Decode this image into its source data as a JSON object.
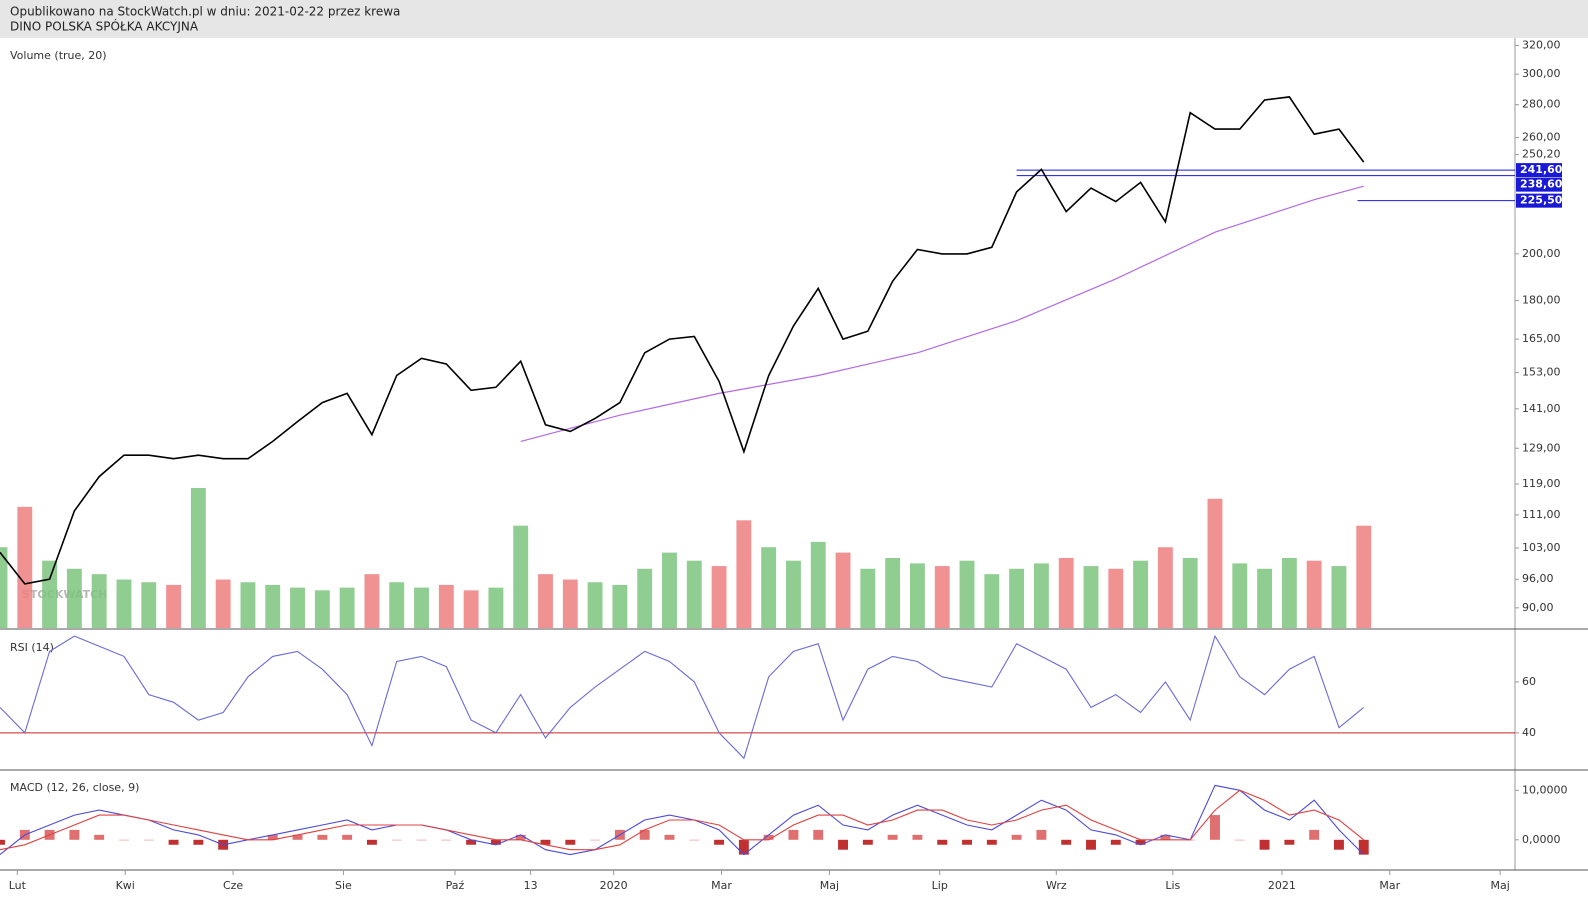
{
  "header": {
    "line1": "Opublikowano na StockWatch.pl w dniu: 2021-02-22 przez krewa",
    "line2": "DINO POLSKA SPÓŁKA AKCYJNA"
  },
  "chart_data": [
    {
      "type": "line",
      "title": "Volume (true, 20)",
      "log_scale": true,
      "xlim": [
        0,
        122.2
      ],
      "ylim": [
        86,
        324
      ],
      "yticks": [
        {
          "value": 90,
          "label": "90,00"
        },
        {
          "value": 96,
          "label": "96,00"
        },
        {
          "value": 103,
          "label": "103,00"
        },
        {
          "value": 111,
          "label": "111,00"
        },
        {
          "value": 119,
          "label": "119,00"
        },
        {
          "value": 129,
          "label": "129,00"
        },
        {
          "value": 141,
          "label": "141,00"
        },
        {
          "value": 153,
          "label": "153,00"
        },
        {
          "value": 165,
          "label": "165,00"
        },
        {
          "value": 180,
          "label": "180,00"
        },
        {
          "value": 200,
          "label": "200,00"
        },
        {
          "value": 250.2,
          "label": "250,20"
        },
        {
          "value": 260,
          "label": "260,00"
        },
        {
          "value": 280,
          "label": "280,00"
        },
        {
          "value": 300,
          "label": "300,00"
        },
        {
          "value": 320,
          "label": "320,00"
        }
      ],
      "x": [
        0,
        2,
        4,
        6,
        8,
        10,
        12,
        14,
        16,
        18,
        20,
        22,
        24,
        26,
        28,
        30,
        32,
        34,
        36,
        38,
        40,
        42,
        44,
        46,
        48,
        50,
        52,
        54,
        56,
        58,
        60,
        62,
        64,
        66,
        68,
        70,
        72,
        74,
        76,
        78,
        80,
        82,
        84,
        86,
        88,
        90,
        92,
        94,
        96,
        98,
        100,
        102,
        104,
        106,
        108,
        110
      ],
      "series": [
        {
          "color": "#000000",
          "values": [
            102,
            95,
            96,
            112,
            121,
            127,
            127,
            126,
            127,
            126,
            126,
            131,
            137,
            143,
            146,
            133,
            152,
            158,
            156,
            147,
            148,
            157,
            136,
            134,
            138,
            143,
            160,
            165,
            166,
            150,
            128,
            152,
            170,
            185,
            165,
            168,
            188,
            202,
            200,
            200,
            203,
            230,
            242,
            220,
            232,
            225,
            235,
            215,
            275,
            265,
            265,
            283,
            285,
            262,
            265,
            246
          ]
        }
      ],
      "ma200": {
        "color": "#b36ae2",
        "x": [
          42,
          50,
          58,
          66,
          74,
          82,
          90,
          98,
          106,
          110
        ],
        "values": [
          131,
          139,
          146,
          152,
          160,
          172,
          189,
          210,
          226,
          233
        ]
      },
      "levels": [
        {
          "value": 241.6,
          "label": "241,60"
        },
        {
          "value": 238.6,
          "label": "238,60"
        },
        {
          "value": 225.5,
          "label": "225,50"
        }
      ],
      "level_color": "#1a1ad6",
      "volume": {
        "up_color": "#7dc47d",
        "down_color": "#ef7f7f",
        "values": [
          300,
          450,
          250,
          220,
          200,
          180,
          170,
          160,
          520,
          180,
          170,
          160,
          150,
          140,
          150,
          200,
          170,
          150,
          160,
          140,
          150,
          380,
          200,
          180,
          170,
          160,
          220,
          280,
          250,
          230,
          400,
          300,
          250,
          320,
          280,
          220,
          260,
          240,
          230,
          250,
          200,
          220,
          240,
          260,
          230,
          220,
          250,
          300,
          260,
          480,
          240,
          220,
          260,
          250,
          230,
          380
        ]
      },
      "watermark": "STOCKWATCH"
    },
    {
      "type": "line",
      "title": "RSI (14)",
      "xlim": [
        0,
        122.2
      ],
      "ylim": [
        25.8,
        79.6
      ],
      "yticks": [
        40,
        60
      ],
      "hline": 40,
      "hline_color": "#cc2222",
      "x": [
        0,
        2,
        4,
        6,
        8,
        10,
        12,
        14,
        16,
        18,
        20,
        22,
        24,
        26,
        28,
        30,
        32,
        34,
        36,
        38,
        40,
        42,
        44,
        46,
        48,
        50,
        52,
        54,
        56,
        58,
        60,
        62,
        64,
        66,
        68,
        70,
        72,
        74,
        76,
        78,
        80,
        82,
        84,
        86,
        88,
        90,
        92,
        94,
        96,
        98,
        100,
        102,
        104,
        106,
        108,
        110
      ],
      "series": [
        {
          "color": "#6b6bd6",
          "values": [
            50,
            40,
            72,
            78,
            74,
            70,
            55,
            52,
            45,
            48,
            62,
            70,
            72,
            65,
            55,
            35,
            68,
            70,
            66,
            45,
            40,
            55,
            38,
            50,
            58,
            65,
            72,
            68,
            60,
            40,
            30,
            62,
            72,
            75,
            45,
            65,
            70,
            68,
            62,
            60,
            58,
            75,
            70,
            65,
            50,
            55,
            48,
            60,
            45,
            78,
            62,
            55,
            65,
            70,
            42,
            50
          ]
        }
      ]
    },
    {
      "type": "line",
      "title": "MACD (12, 26, close, 9)",
      "xlim": [
        0,
        122.2
      ],
      "ylim": [
        -5.9,
        13.7
      ],
      "yticks": [
        {
          "value": 0,
          "label": "0,0000"
        },
        {
          "value": 10,
          "label": "10,0000"
        }
      ],
      "xticks": [
        {
          "value": 1.4,
          "label": "Lut"
        },
        {
          "value": 10.1,
          "label": "Kwi"
        },
        {
          "value": 18.8,
          "label": "Cze"
        },
        {
          "value": 27.7,
          "label": "Sie"
        },
        {
          "value": 36.7,
          "label": "Paź"
        },
        {
          "value": 42.8,
          "label": "13"
        },
        {
          "value": 49.5,
          "label": "2020"
        },
        {
          "value": 58.2,
          "label": "Mar"
        },
        {
          "value": 66.9,
          "label": "Maj"
        },
        {
          "value": 75.8,
          "label": "Lip"
        },
        {
          "value": 85.2,
          "label": "Wrz"
        },
        {
          "value": 94.6,
          "label": "Lis"
        },
        {
          "value": 103.4,
          "label": "2021"
        },
        {
          "value": 112.1,
          "label": "Mar"
        },
        {
          "value": 121,
          "label": "Maj"
        }
      ],
      "x": [
        0,
        2,
        4,
        6,
        8,
        10,
        12,
        14,
        16,
        18,
        20,
        22,
        24,
        26,
        28,
        30,
        32,
        34,
        36,
        38,
        40,
        42,
        44,
        46,
        48,
        50,
        52,
        54,
        56,
        58,
        60,
        62,
        64,
        66,
        68,
        70,
        72,
        74,
        76,
        78,
        80,
        82,
        84,
        86,
        88,
        90,
        92,
        94,
        96,
        98,
        100,
        102,
        104,
        106,
        108,
        110
      ],
      "series": [
        {
          "color": "#4b4bd8",
          "values": [
            -3,
            1,
            3,
            5,
            6,
            5,
            4,
            2,
            1,
            -1,
            0,
            1,
            2,
            3,
            4,
            2,
            3,
            3,
            2,
            0,
            -1,
            1,
            -2,
            -3,
            -2,
            1,
            4,
            5,
            4,
            2,
            -3,
            1,
            5,
            7,
            3,
            2,
            5,
            7,
            5,
            3,
            2,
            5,
            8,
            6,
            2,
            1,
            -1,
            1,
            0,
            11,
            10,
            6,
            4,
            8,
            2,
            -3
          ]
        },
        {
          "color": "#e04040",
          "values": [
            -2,
            -1,
            1,
            3,
            5,
            5,
            4,
            3,
            2,
            1,
            0,
            0,
            1,
            2,
            3,
            3,
            3,
            3,
            2,
            1,
            0,
            0,
            -1,
            -2,
            -2,
            -1,
            2,
            4,
            4,
            3,
            0,
            0,
            3,
            5,
            5,
            3,
            4,
            6,
            6,
            4,
            3,
            4,
            6,
            7,
            4,
            2,
            0,
            0,
            0,
            6,
            10,
            8,
            5,
            6,
            4,
            0
          ]
        }
      ],
      "histogram": {
        "up_color": "#e07070",
        "down_color": "#c03030",
        "values": [
          -1,
          2,
          2,
          2,
          1,
          0,
          0,
          -1,
          -1,
          -2,
          0,
          1,
          1,
          1,
          1,
          -1,
          0,
          0,
          0,
          -1,
          -1,
          1,
          -1,
          -1,
          0,
          2,
          2,
          1,
          0,
          -1,
          -3,
          1,
          2,
          2,
          -2,
          -1,
          1,
          1,
          -1,
          -1,
          -1,
          1,
          2,
          -1,
          -2,
          -1,
          -1,
          1,
          0,
          5,
          0,
          -2,
          -1,
          2,
          -2,
          -3
        ]
      }
    }
  ]
}
